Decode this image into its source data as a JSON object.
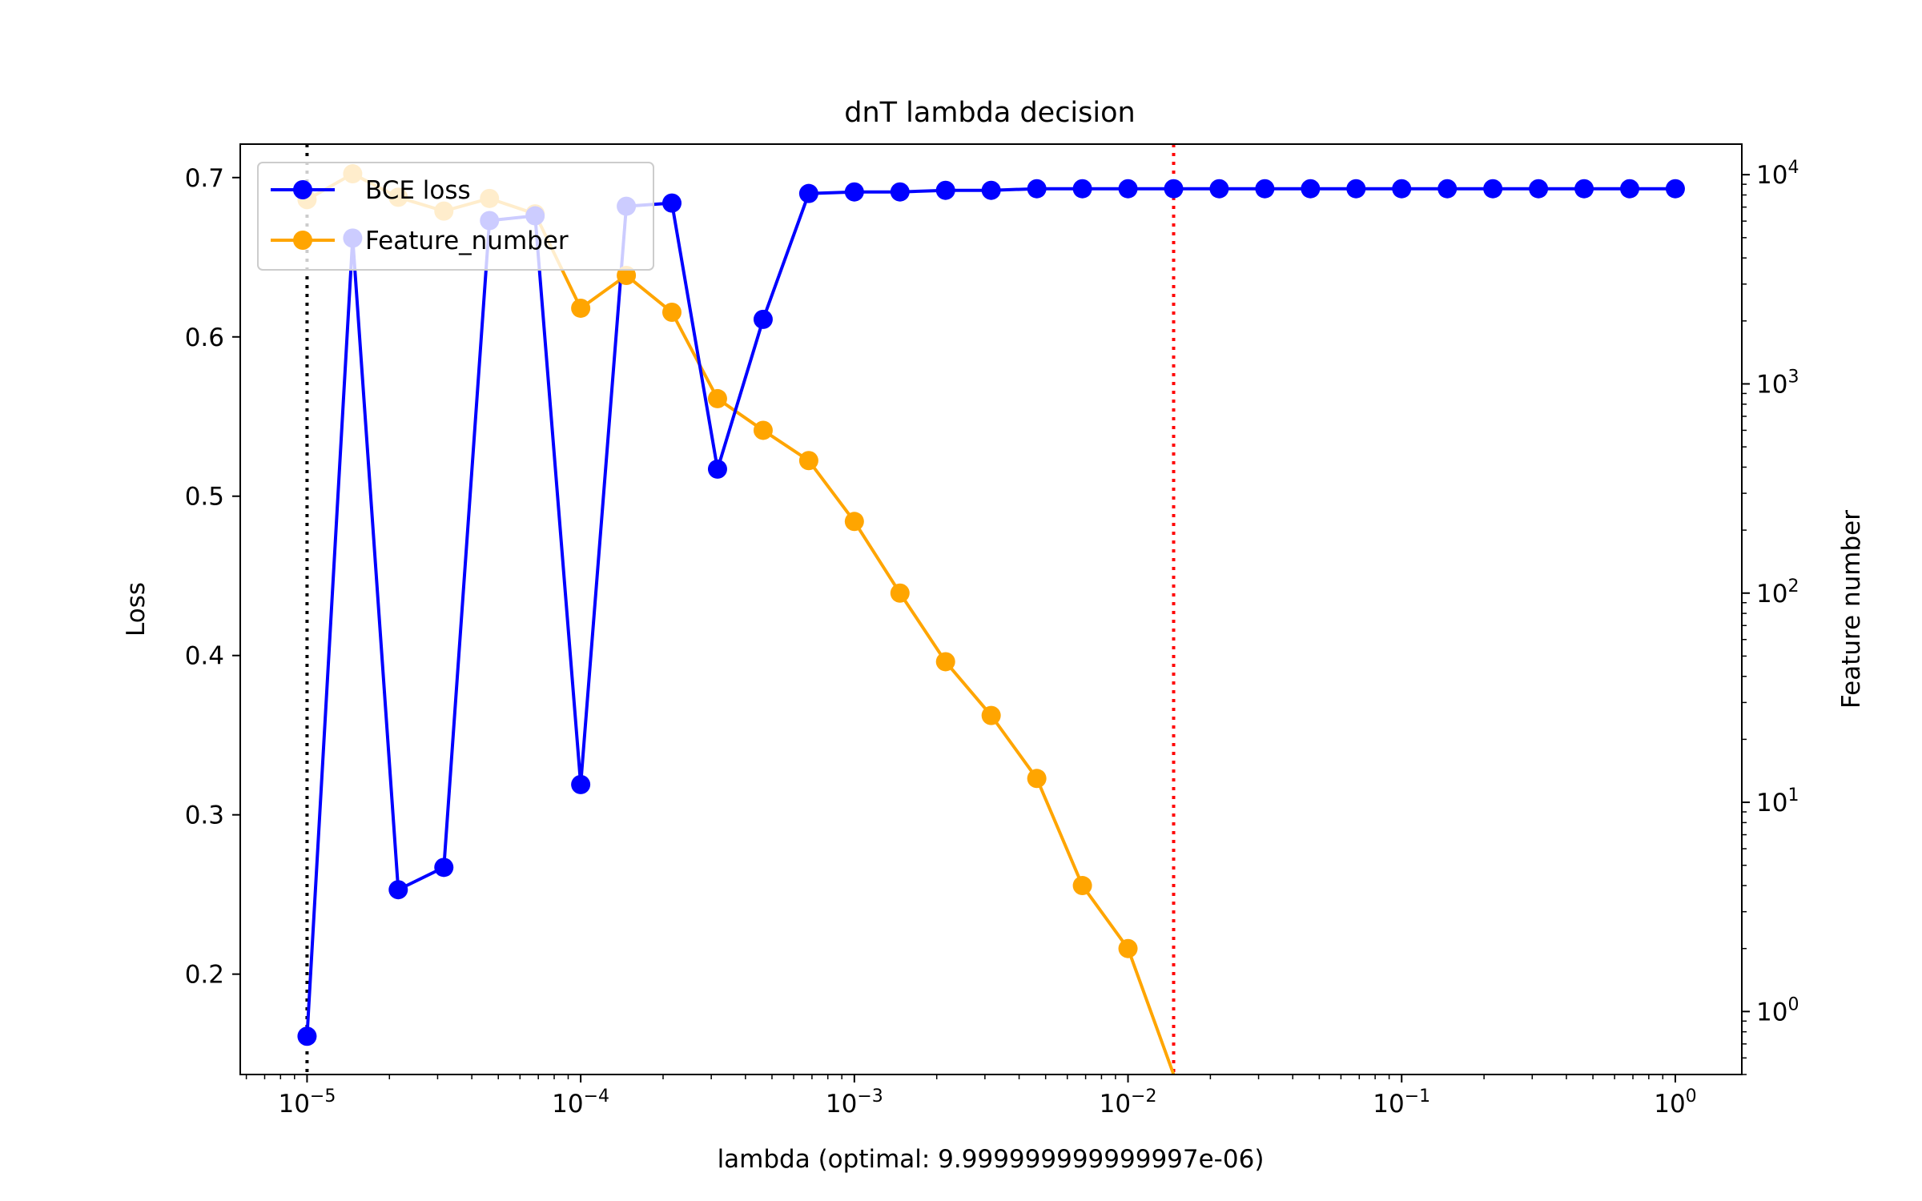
{
  "chart_data": {
    "type": "line",
    "title": "dnT lambda decision",
    "xlabel": "lambda (optimal: 9.999999999999997e-06)",
    "ylabel": "Loss",
    "y2label": "Feature number",
    "xscale": "log",
    "xlim": [
      5.7e-06,
      1.75
    ],
    "ylim": [
      0.137,
      0.721
    ],
    "y2scale": "log",
    "y2lim": [
      0.5,
      14000
    ],
    "x": [
      1e-05,
      1.468e-05,
      2.154e-05,
      3.162e-05,
      4.642e-05,
      6.813e-05,
      0.0001,
      0.0001468,
      0.0002154,
      0.0003162,
      0.0004642,
      0.0006813,
      0.001,
      0.001468,
      0.002154,
      0.003162,
      0.004642,
      0.006813,
      0.01,
      0.01468,
      0.02154,
      0.03162,
      0.04642,
      0.06813,
      0.1,
      0.1468,
      0.2154,
      0.3162,
      0.4642,
      0.6813,
      1.0
    ],
    "series": [
      {
        "name": "BCE loss",
        "axis": "left",
        "color": "#0000ff",
        "values": [
          0.161,
          0.662,
          0.253,
          0.267,
          0.673,
          0.676,
          0.319,
          0.682,
          0.684,
          0.517,
          0.611,
          0.69,
          0.691,
          0.691,
          0.692,
          0.692,
          0.693,
          0.693,
          0.693,
          0.693,
          0.693,
          0.693,
          0.693,
          0.693,
          0.693,
          0.693,
          0.693,
          0.693,
          0.693,
          0.693,
          0.693
        ]
      },
      {
        "name": "Feature_number",
        "axis": "right",
        "color": "#ffa500",
        "values": [
          7600,
          10100,
          7800,
          6700,
          7700,
          6500,
          2300,
          3300,
          2200,
          850,
          600,
          430,
          220,
          100,
          47,
          26,
          13,
          4,
          2,
          0,
          null,
          null,
          null,
          null,
          null,
          null,
          null,
          null,
          null,
          null,
          null
        ]
      }
    ],
    "vlines": [
      {
        "x": 1e-05,
        "color": "#000000",
        "style": "dotted"
      },
      {
        "x": 0.01468,
        "color": "#ff0000",
        "style": "dotted"
      }
    ],
    "xticks": [
      {
        "value": 1e-05,
        "base": "10",
        "exp": "−5"
      },
      {
        "value": 0.0001,
        "base": "10",
        "exp": "−4"
      },
      {
        "value": 0.001,
        "base": "10",
        "exp": "−3"
      },
      {
        "value": 0.01,
        "base": "10",
        "exp": "−2"
      },
      {
        "value": 0.1,
        "base": "10",
        "exp": "−1"
      },
      {
        "value": 1,
        "base": "10",
        "exp": "0"
      }
    ],
    "yticks": [
      "0.2",
      "0.3",
      "0.4",
      "0.5",
      "0.6",
      "0.7"
    ],
    "y2ticks": [
      {
        "value": 1,
        "base": "10",
        "exp": "0"
      },
      {
        "value": 10,
        "base": "10",
        "exp": "1"
      },
      {
        "value": 100,
        "base": "10",
        "exp": "2"
      },
      {
        "value": 1000,
        "base": "10",
        "exp": "3"
      },
      {
        "value": 10000,
        "base": "10",
        "exp": "4"
      }
    ],
    "legend": {
      "position": "upper-left",
      "entries": [
        "BCE loss",
        "Feature_number"
      ]
    },
    "grid": false
  }
}
